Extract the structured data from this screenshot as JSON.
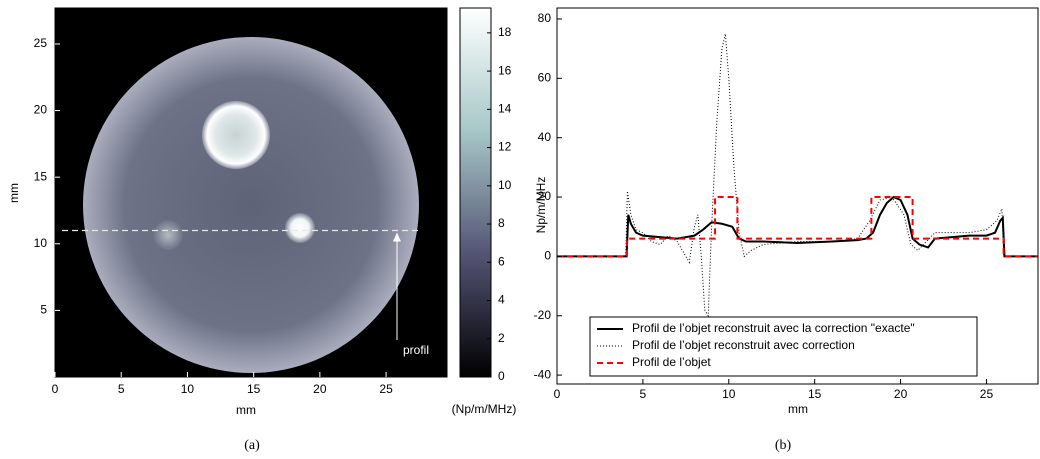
{
  "chart_data": [
    {
      "type": "image",
      "xlabel": "mm",
      "ylabel": "mm",
      "xlim": [
        0,
        29.6
      ],
      "ylim": [
        0,
        27.7
      ],
      "xticks": [
        0,
        5,
        10,
        15,
        20,
        25
      ],
      "yticks": [
        5,
        10,
        15,
        20,
        25
      ],
      "colormap": "bone",
      "colorbar": {
        "label": "(Np/m/MHz)",
        "clim": [
          0,
          19.3
        ],
        "ticks": [
          0,
          2,
          4,
          6,
          8,
          10,
          12,
          14,
          16,
          18
        ]
      },
      "annotation": {
        "text": "profil",
        "y": 11
      },
      "caption": "(a)"
    },
    {
      "type": "line",
      "xlabel": "mm",
      "ylabel": "Np/m/MHz",
      "xlim": [
        0,
        28
      ],
      "ylim": [
        -43,
        83.7
      ],
      "xticks": [
        0,
        5,
        10,
        15,
        20,
        25
      ],
      "yticks": [
        -40,
        -20,
        0,
        20,
        40,
        60,
        80
      ],
      "legend": "lower left",
      "series": [
        {
          "name": "Profil de l’objet reconstruit avec la correction \"exacte\"",
          "color": "#000000",
          "style": "solid",
          "x": [
            0,
            4.05,
            4.15,
            4.3,
            4.6,
            5,
            6,
            7,
            8,
            8.5,
            9,
            9.6,
            10.2,
            10.6,
            11,
            12,
            14,
            16,
            17.5,
            18,
            18.4,
            18.8,
            19.2,
            19.6,
            20,
            20.4,
            20.7,
            21.1,
            21.6,
            22,
            23,
            24,
            25,
            25.5,
            25.8,
            25.95,
            26.05,
            28
          ],
          "values": [
            0,
            0,
            14,
            11,
            8,
            7,
            6.5,
            6,
            7,
            9,
            11.5,
            11,
            10,
            6,
            5,
            5,
            4.5,
            5,
            5.5,
            6,
            8,
            14,
            18,
            20,
            19,
            14,
            6,
            4,
            3,
            6,
            6.5,
            7,
            7,
            8,
            12,
            13,
            0,
            0
          ]
        },
        {
          "name": "Profil de l’objet reconstruit avec correction",
          "color": "#000000",
          "style": "dotted",
          "x": [
            0,
            4.0,
            4.1,
            4.3,
            4.6,
            5,
            5.5,
            6,
            6.5,
            7,
            7.4,
            7.7,
            8.0,
            8.2,
            8.4,
            8.6,
            8.8,
            9.0,
            9.3,
            9.6,
            9.8,
            10.0,
            10.3,
            10.6,
            10.9,
            11.3,
            12,
            14,
            16,
            17.5,
            18.2,
            18.8,
            19.5,
            20.2,
            20.6,
            21,
            21.5,
            22,
            24,
            25,
            25.6,
            25.9,
            26.0,
            28
          ],
          "values": [
            0,
            0,
            22,
            14,
            9,
            8,
            5,
            4,
            7,
            5,
            1,
            -2,
            10,
            14,
            0,
            -18,
            -20,
            10,
            45,
            70,
            75,
            60,
            30,
            8,
            0,
            2,
            4,
            5,
            5,
            6,
            12,
            19,
            20,
            14,
            4,
            2,
            5,
            8,
            8,
            9,
            12,
            16,
            0,
            0
          ]
        },
        {
          "name": "Profil de l’objet",
          "color": "#ff0000",
          "style": "dashed",
          "x": [
            0,
            4.07,
            4.07,
            9.2,
            9.2,
            10.5,
            10.5,
            18.3,
            18.3,
            20.7,
            20.7,
            26.0,
            26.0,
            28
          ],
          "values": [
            0,
            0,
            6,
            6,
            20,
            20,
            6,
            6,
            20,
            20,
            6,
            6,
            0,
            0
          ]
        }
      ],
      "caption": "(b)"
    }
  ]
}
